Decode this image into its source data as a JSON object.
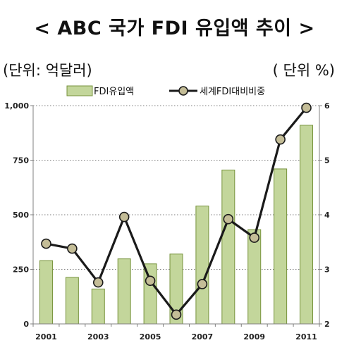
{
  "title": "< ABC 국가 FDI 유입액 추이 >",
  "unit_left": "(단위:  억달러)",
  "unit_right": "( 단위  %)",
  "colors": {
    "bar_fill": "#c3d69b",
    "bar_stroke": "#77933c",
    "line": "#1a1a1a",
    "marker_fill": "#c4bd97",
    "grid": "#7f7f7f"
  },
  "chart_data": {
    "type": "bar",
    "categories": [
      "2001",
      "2002",
      "2003",
      "2004",
      "2005",
      "2006",
      "2007",
      "2008",
      "2009",
      "2010",
      "2011"
    ],
    "x_tick_labels": [
      "2001",
      "",
      "2003",
      "",
      "2005",
      "",
      "2007",
      "",
      "2009",
      "",
      "2011"
    ],
    "series": [
      {
        "name": "FDI유입액",
        "type": "bar",
        "axis": "left",
        "values": [
          290,
          213,
          160,
          298,
          275,
          320,
          540,
          705,
          432,
          710,
          910
        ]
      },
      {
        "name": "세계FDI대비비중",
        "type": "line",
        "axis": "right",
        "values": [
          3.47,
          3.38,
          2.76,
          3.96,
          2.79,
          2.17,
          2.73,
          3.92,
          3.58,
          5.38,
          5.96
        ]
      }
    ],
    "y_left": {
      "min": 0,
      "max": 1000,
      "ticks": [
        0,
        250,
        500,
        750,
        1000
      ],
      "tick_labels": [
        "0",
        "250",
        "500",
        "750",
        "1,000"
      ]
    },
    "y_right": {
      "min": 2,
      "max": 6,
      "ticks": [
        2,
        3,
        4,
        5,
        6
      ],
      "tick_labels": [
        "2",
        "3",
        "4",
        "5",
        "6"
      ]
    },
    "grid": "horizontal-dotted",
    "legend_position": "top"
  }
}
